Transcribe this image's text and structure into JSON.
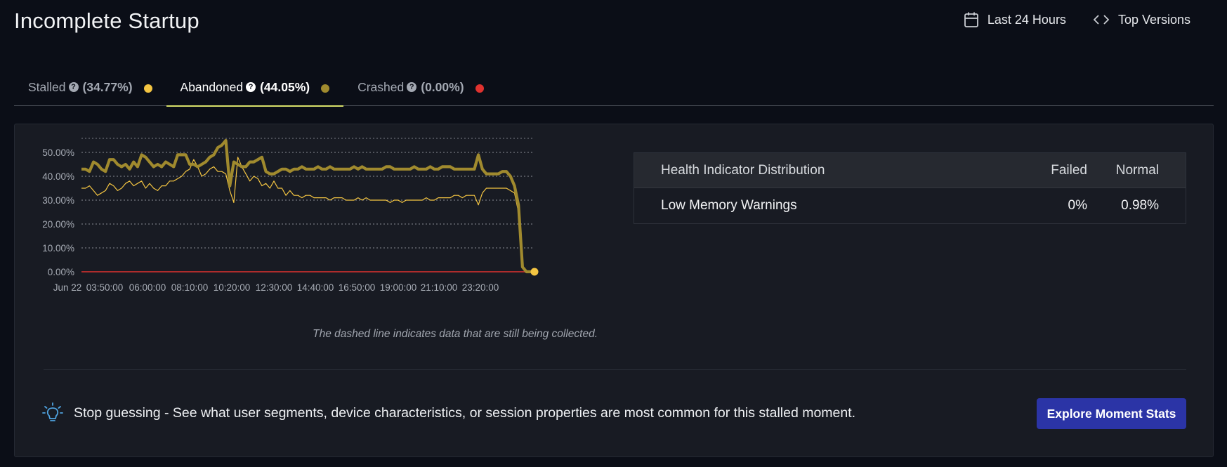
{
  "page": {
    "title": "Incomplete Startup"
  },
  "header": {
    "time_range_label": "Last 24 Hours",
    "versions_label": "Top Versions"
  },
  "tabs": [
    {
      "label": "Stalled",
      "pct": "(34.77%)",
      "dot_color": "#f4c542",
      "active": false
    },
    {
      "label": "Abandoned",
      "pct": "(44.05%)",
      "dot_color": "#a08a2e",
      "active": true
    },
    {
      "label": "Crashed",
      "pct": "(0.00%)",
      "dot_color": "#e0322f",
      "active": false
    }
  ],
  "chart_data": {
    "type": "line",
    "y_ticks": [
      "50.00%",
      "40.00%",
      "30.00%",
      "20.00%",
      "10.00%",
      "0.00%"
    ],
    "x_ticks": [
      "Jun 22",
      "03:50:00",
      "06:00:00",
      "08:10:00",
      "10:20:00",
      "12:30:00",
      "14:40:00",
      "16:50:00",
      "19:00:00",
      "21:10:00",
      "23:20:00"
    ],
    "ylim": [
      0,
      56
    ],
    "grid": true,
    "note": "The dashed line indicates data that are still being collected.",
    "series": [
      {
        "color": "#a08a2e",
        "values": [
          43,
          43,
          42,
          46,
          45,
          43,
          42,
          47,
          47,
          45,
          44,
          45,
          43,
          46,
          44,
          49,
          48,
          46,
          44,
          45,
          44,
          46,
          45,
          44,
          49,
          49,
          49,
          45,
          45,
          44,
          45,
          46,
          48,
          49,
          52,
          53,
          55,
          36,
          46,
          45,
          44,
          44,
          46,
          46,
          47,
          48,
          42,
          41,
          41,
          42,
          43,
          43,
          42,
          43,
          43,
          44,
          43,
          43,
          43,
          44,
          43,
          43,
          44,
          43,
          43,
          43,
          43,
          43,
          44,
          43,
          44,
          43,
          43,
          43,
          43,
          43,
          44,
          44,
          43,
          43,
          43,
          43,
          43,
          44,
          43,
          43,
          43,
          44,
          43,
          43,
          44,
          44,
          44,
          43,
          43,
          43,
          43,
          43,
          43,
          49,
          43,
          41,
          41,
          41,
          41,
          42,
          42,
          40,
          36,
          28,
          2,
          0,
          0,
          0
        ]
      },
      {
        "color": "#f4c542",
        "values": [
          35,
          35,
          36,
          34,
          32,
          33,
          34,
          37,
          36,
          34,
          35,
          37,
          38,
          36,
          37,
          38,
          35,
          37,
          35,
          34,
          36,
          36,
          38,
          38,
          39,
          40,
          42,
          43,
          47,
          44,
          40,
          41,
          43,
          44,
          42,
          42,
          41,
          34,
          29,
          48,
          44,
          41,
          38,
          40,
          39,
          36,
          37,
          35,
          38,
          35,
          35,
          32,
          34,
          32,
          32,
          31,
          32,
          32,
          31,
          31,
          31,
          31,
          30,
          31,
          31,
          31,
          30,
          30,
          30,
          31,
          30,
          31,
          30,
          30,
          30,
          30,
          30,
          29,
          30,
          30,
          29,
          30,
          30,
          30,
          30,
          30,
          31,
          30,
          30,
          31,
          31,
          31,
          31,
          32,
          32,
          31,
          32,
          32,
          32,
          28,
          33,
          35,
          35,
          35,
          35,
          35,
          35,
          34,
          33,
          25,
          2,
          0,
          0,
          0
        ]
      },
      {
        "color": "#e0322f",
        "values": [
          0,
          0,
          0,
          0,
          0,
          0,
          0,
          0,
          0,
          0,
          0,
          0,
          0,
          0,
          0,
          0,
          0,
          0,
          0,
          0,
          0,
          0,
          0,
          0,
          0,
          0,
          0,
          0,
          0,
          0,
          0,
          0,
          0,
          0,
          0,
          0,
          0,
          0,
          0,
          0,
          0,
          0,
          0,
          0,
          0,
          0,
          0,
          0,
          0,
          0,
          0,
          0,
          0,
          0,
          0,
          0,
          0,
          0,
          0,
          0,
          0,
          0,
          0,
          0,
          0,
          0,
          0,
          0,
          0,
          0,
          0,
          0,
          0,
          0,
          0,
          0,
          0,
          0,
          0,
          0,
          0,
          0,
          0,
          0,
          0,
          0,
          0,
          0,
          0,
          0,
          0,
          0,
          0,
          0,
          0,
          0,
          0,
          0,
          0,
          0,
          0,
          0,
          0,
          0,
          0,
          0,
          0,
          0,
          0,
          0,
          0,
          0,
          0,
          0
        ]
      }
    ]
  },
  "health_table": {
    "headers": [
      "Health Indicator Distribution",
      "Failed",
      "Normal"
    ],
    "rows": [
      {
        "name": "Low Memory Warnings",
        "failed": "0%",
        "normal": "0.98%"
      }
    ]
  },
  "tip": {
    "text": "Stop guessing - See what user segments, device characteristics, or session properties are most common for this stalled moment.",
    "button_label": "Explore Moment Stats"
  }
}
